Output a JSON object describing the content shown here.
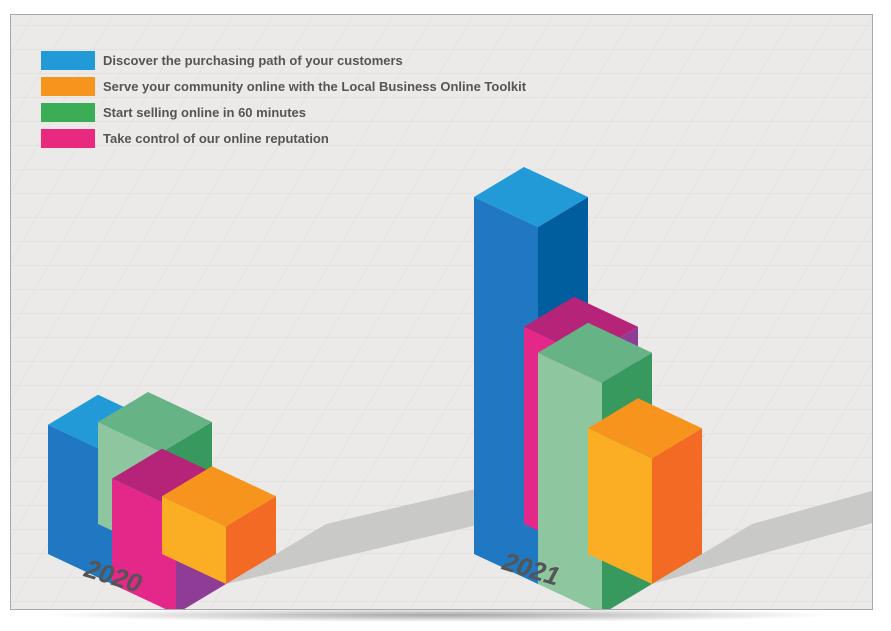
{
  "chart_data": {
    "type": "bar",
    "categories": [
      "2020",
      "2021"
    ],
    "series": [
      {
        "name": "Discover the purchasing path of your customers",
        "color": "#1f78c1",
        "values": [
          3.8,
          10.5
        ]
      },
      {
        "name": "Serve your community online with the Local Business Online Toolkit",
        "color": "#f7941d",
        "values": [
          1.7,
          3.7
        ]
      },
      {
        "name": "Start selling online in 60 minutes",
        "color": "#3aad56",
        "values": [
          3.0,
          6.8
        ]
      },
      {
        "name": "Take control of our online reputation",
        "color": "#e8297f",
        "values": [
          3.1,
          5.8
        ]
      }
    ]
  },
  "colors": {
    "blue": {
      "top": "#229ad7",
      "left": "#1f78c1",
      "right": "#005e9e"
    },
    "orange": {
      "top": "#f7941d",
      "left": "#fbae23",
      "right": "#f26a24"
    },
    "green": {
      "top": "#66b386",
      "left": "#8ec6a0",
      "right": "#37995e"
    },
    "pink": {
      "top": "#b62479",
      "left": "#e4288a",
      "right": "#8f3c96"
    }
  }
}
